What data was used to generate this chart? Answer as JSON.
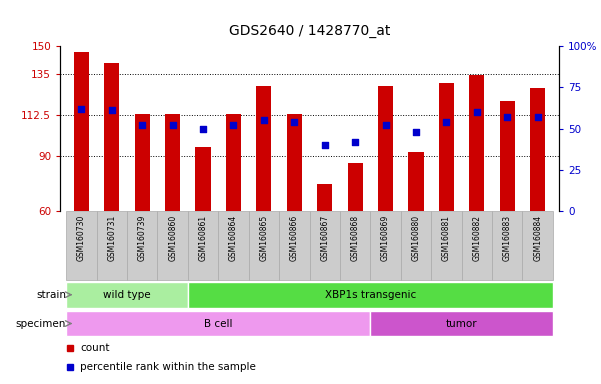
{
  "title": "GDS2640 / 1428770_at",
  "samples": [
    "GSM160730",
    "GSM160731",
    "GSM160739",
    "GSM160860",
    "GSM160861",
    "GSM160864",
    "GSM160865",
    "GSM160866",
    "GSM160867",
    "GSM160868",
    "GSM160869",
    "GSM160880",
    "GSM160881",
    "GSM160882",
    "GSM160883",
    "GSM160884"
  ],
  "counts": [
    147,
    141,
    113,
    113,
    95,
    113,
    128,
    113,
    75,
    86,
    128,
    92,
    130,
    134,
    120,
    127
  ],
  "percentiles": [
    62,
    61,
    52,
    52,
    50,
    52,
    55,
    54,
    40,
    42,
    52,
    48,
    54,
    60,
    57,
    57
  ],
  "ylim_left": [
    60,
    150
  ],
  "ylim_right": [
    0,
    100
  ],
  "yticks_left": [
    60,
    90,
    112.5,
    135,
    150
  ],
  "ytick_labels_left": [
    "60",
    "90",
    "112.5",
    "135",
    "150"
  ],
  "yticks_right": [
    0,
    25,
    50,
    75,
    100
  ],
  "ytick_labels_right": [
    "0",
    "25",
    "50",
    "75",
    "100%"
  ],
  "bar_color": "#cc0000",
  "dot_color": "#0000cc",
  "bar_width": 0.5,
  "grid_yticks": [
    90,
    112.5,
    135
  ],
  "strain_groups": [
    {
      "label": "wild type",
      "start": 0,
      "end": 4,
      "color": "#aaeea0"
    },
    {
      "label": "XBP1s transgenic",
      "start": 4,
      "end": 16,
      "color": "#55dd44"
    }
  ],
  "specimen_groups": [
    {
      "label": "B cell",
      "start": 0,
      "end": 10,
      "color": "#ee99ee"
    },
    {
      "label": "tumor",
      "start": 10,
      "end": 16,
      "color": "#cc55cc"
    }
  ],
  "legend_items": [
    {
      "label": "count",
      "color": "#cc0000"
    },
    {
      "label": "percentile rank within the sample",
      "color": "#0000cc"
    }
  ],
  "strain_label": "strain",
  "specimen_label": "specimen",
  "bg_color": "#ffffff",
  "tick_box_color": "#cccccc",
  "tick_box_edge_color": "#aaaaaa"
}
